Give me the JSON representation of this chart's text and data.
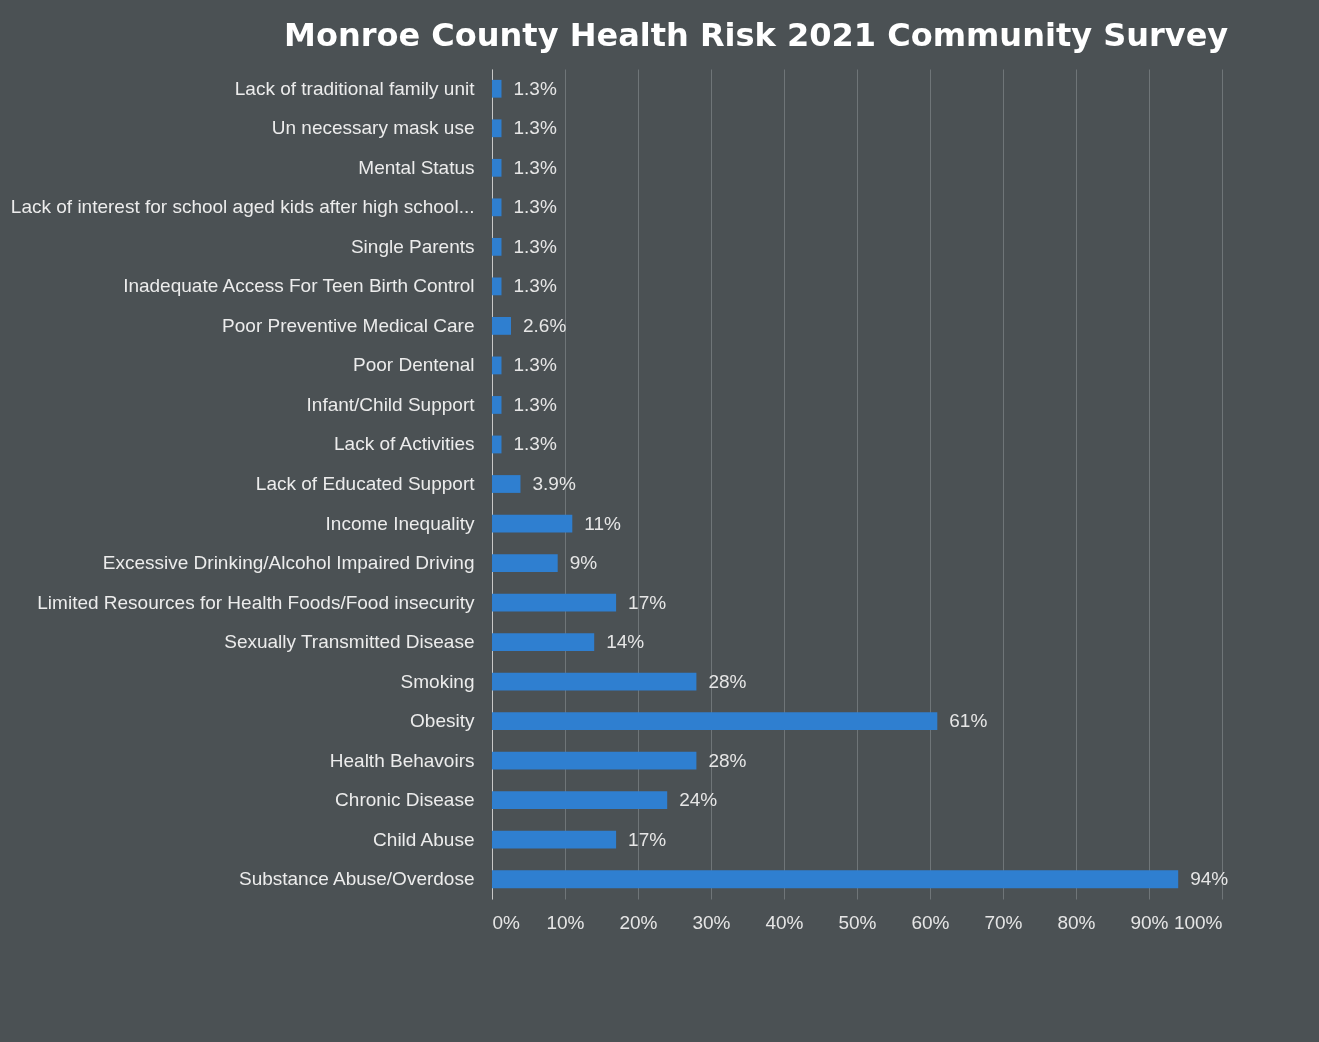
{
  "chart_data": {
    "type": "bar",
    "orientation": "horizontal",
    "title": "Monroe County Health Risk 2021 Community Survey",
    "categories": [
      "Lack of traditional family unit",
      "Un necessary mask use",
      "Mental Status",
      "Lack of interest for school aged kids after high school...",
      "Single Parents",
      "Inadequate Access For Teen Birth Control",
      "Poor Preventive Medical Care",
      "Poor Dentenal",
      "Infant/Child Support",
      "Lack of Activities",
      "Lack of Educated Support",
      "Income Inequality",
      "Excessive Drinking/Alcohol Impaired Driving",
      "Limited Resources for Health Foods/Food insecurity",
      "Sexually Transmitted Disease",
      "Smoking",
      "Obesity",
      "Health Behavoirs",
      "Chronic Disease",
      "Child Abuse",
      "Substance Abuse/Overdose"
    ],
    "values": [
      1.3,
      1.3,
      1.3,
      1.3,
      1.3,
      1.3,
      2.6,
      1.3,
      1.3,
      1.3,
      3.9,
      11,
      9,
      17,
      14,
      28,
      61,
      28,
      24,
      17,
      94
    ],
    "value_labels": [
      "1.3%",
      "1.3%",
      "1.3%",
      "1.3%",
      "1.3%",
      "1.3%",
      "2.6%",
      "1.3%",
      "1.3%",
      "1.3%",
      "3.9%",
      "11%",
      "9%",
      "17%",
      "14%",
      "28%",
      "61%",
      "28%",
      "24%",
      "17%",
      "94%"
    ],
    "color": "#2f7fd0",
    "xlim": [
      0,
      100
    ],
    "xticks": [
      {
        "value": 0,
        "label": "0%"
      },
      {
        "value": 10,
        "label": "10%"
      },
      {
        "value": 20,
        "label": "20%"
      },
      {
        "value": 30,
        "label": "30%"
      },
      {
        "value": 40,
        "label": "40%"
      },
      {
        "value": 50,
        "label": "50%"
      },
      {
        "value": 60,
        "label": "60%"
      },
      {
        "value": 70,
        "label": "70%"
      },
      {
        "value": 80,
        "label": "80%"
      },
      {
        "value": 90,
        "label": "90%"
      },
      {
        "value": 100,
        "label": "100%"
      }
    ],
    "grid": "x"
  }
}
